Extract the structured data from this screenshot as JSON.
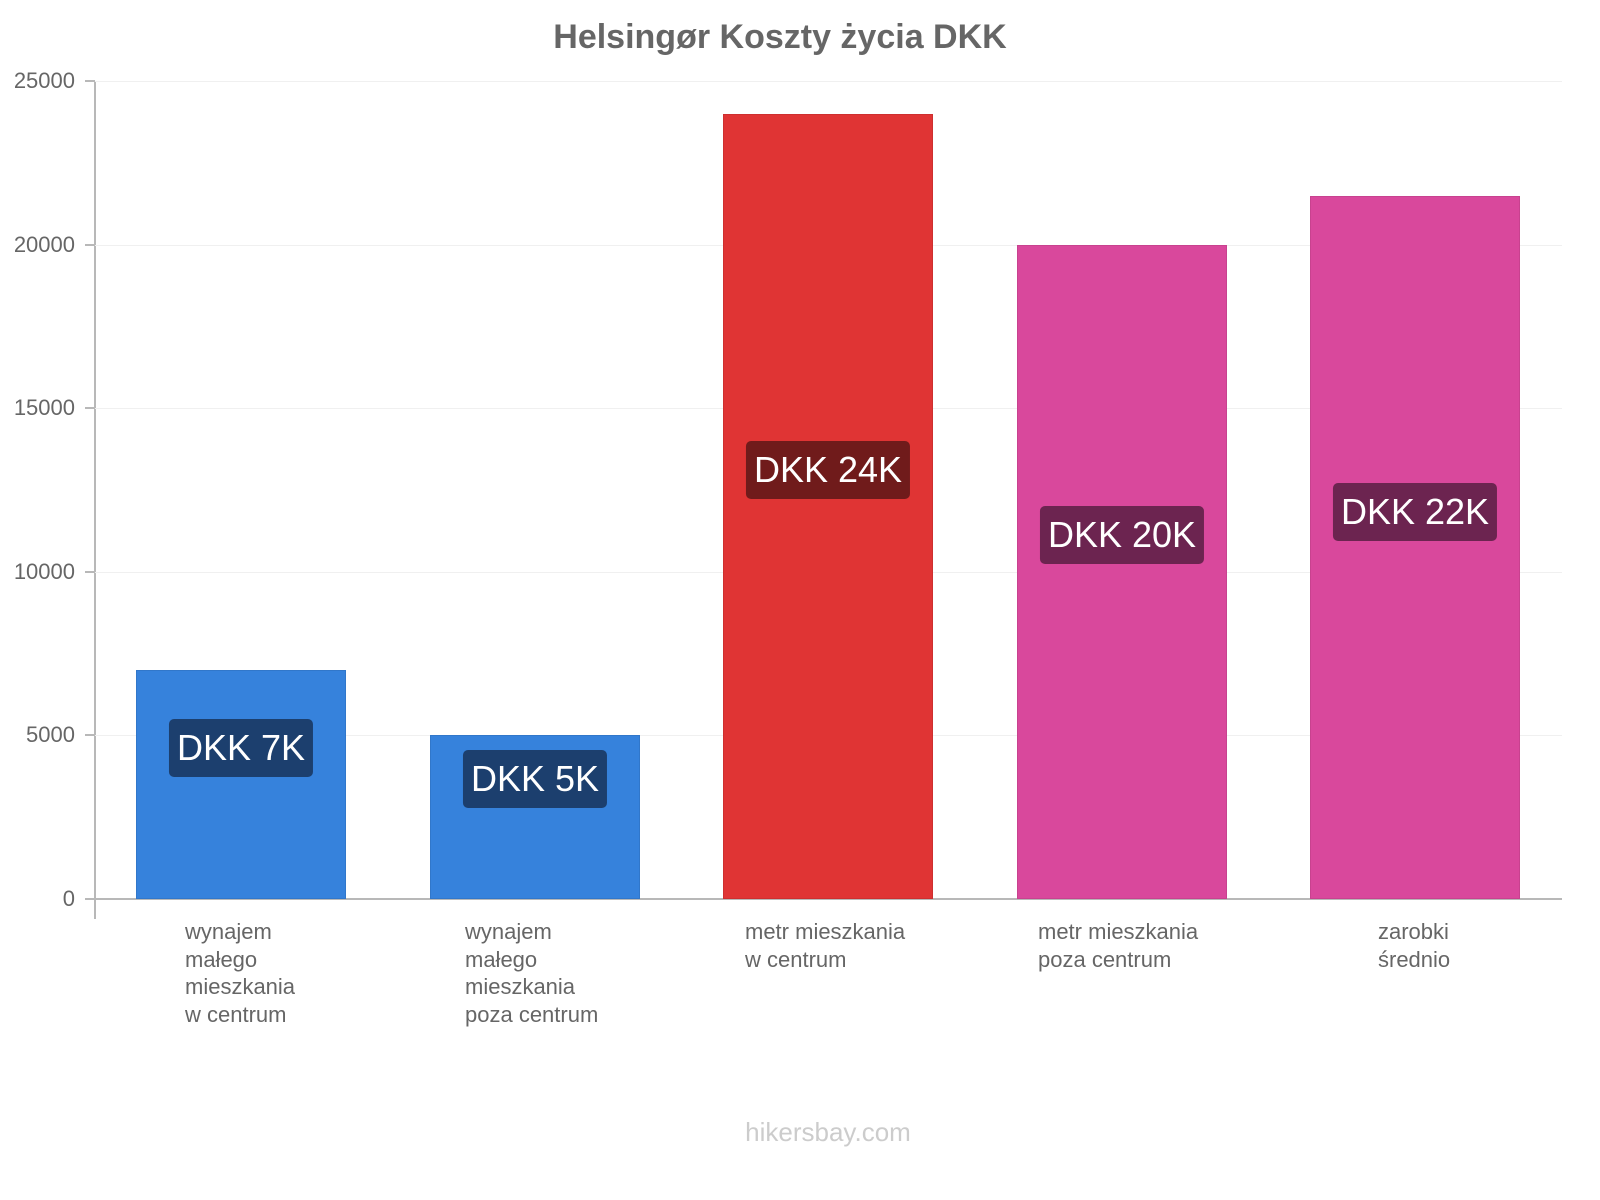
{
  "chart_data": {
    "type": "bar",
    "title": "Helsingør Koszty życia DKK",
    "xlabel": "",
    "ylabel": "",
    "ylim": [
      0,
      25000
    ],
    "yticks": [
      0,
      5000,
      10000,
      15000,
      20000,
      25000
    ],
    "grid": true,
    "legend": "none",
    "categories": [
      "wynajem małego mieszkania w centrum",
      "wynajem małego mieszkania poza centrum",
      "metr mieszkania w centrum",
      "metr mieszkania poza centrum",
      "zarobki średnio"
    ],
    "values": [
      7000,
      5000,
      24000,
      20000,
      21500
    ],
    "data_labels": [
      "DKK 7K",
      "DKK 5K",
      "DKK 24K",
      "DKK 20K",
      "DKK 22K"
    ],
    "bar_colors": [
      "#3682dc",
      "#3682dc",
      "#e03434",
      "#d9489c",
      "#d9489c"
    ],
    "label_bg_colors": [
      "#1c3f6e",
      "#1c3f6e",
      "#701b1b",
      "#6c2450",
      "#6c2450"
    ]
  },
  "header": {
    "title": "Helsingør Koszty życia DKK"
  },
  "axis": {
    "y_ticks": [
      "0",
      "5000",
      "10000",
      "15000",
      "20000",
      "25000"
    ]
  },
  "x_labels": [
    "wynajem\nmałego\nmieszkania\nw centrum",
    "wynajem\nmałego\nmieszkania\npoza centrum",
    "metr mieszkania\nw centrum",
    "metr mieszkania\npoza centrum",
    "zarobki\nśrednio"
  ],
  "bars": [
    {
      "label": "DKK 7K"
    },
    {
      "label": "DKK 5K"
    },
    {
      "label": "DKK 24K"
    },
    {
      "label": "DKK 20K"
    },
    {
      "label": "DKK 22K"
    }
  ],
  "footer": {
    "text": "hikersbay.com"
  }
}
